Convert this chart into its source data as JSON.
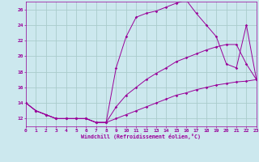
{
  "xlabel": "Windchill (Refroidissement éolien,°C)",
  "bg_color": "#cce8ee",
  "grid_color": "#aacccc",
  "line_color": "#990099",
  "x_min": 0,
  "x_max": 23,
  "y_min": 11,
  "y_max": 27,
  "curve1_x": [
    0,
    1,
    2,
    3,
    4,
    5,
    6,
    7,
    8,
    9,
    10,
    11,
    12,
    13,
    14,
    15,
    16,
    17,
    18,
    19,
    20,
    21,
    22,
    23
  ],
  "curve1_y": [
    14.0,
    13.0,
    12.5,
    12.0,
    12.0,
    12.0,
    12.0,
    11.5,
    11.5,
    12.0,
    12.5,
    13.0,
    13.5,
    14.0,
    14.5,
    15.0,
    15.3,
    15.7,
    16.0,
    16.3,
    16.5,
    16.7,
    16.8,
    17.0
  ],
  "curve2_x": [
    0,
    1,
    2,
    3,
    4,
    5,
    6,
    7,
    8,
    9,
    10,
    11,
    12,
    13,
    14,
    15,
    16,
    17,
    18,
    19,
    20,
    21,
    22,
    23
  ],
  "curve2_y": [
    14.0,
    13.0,
    12.5,
    12.0,
    12.0,
    12.0,
    12.0,
    11.5,
    11.5,
    13.5,
    15.0,
    16.0,
    17.0,
    17.8,
    18.5,
    19.3,
    19.8,
    20.3,
    20.8,
    21.2,
    21.5,
    21.5,
    19.0,
    17.0
  ],
  "curve3_x": [
    0,
    1,
    2,
    3,
    4,
    5,
    6,
    7,
    8,
    9,
    10,
    11,
    12,
    13,
    14,
    15,
    16,
    17,
    18,
    19,
    20,
    21,
    22,
    23
  ],
  "curve3_y": [
    14.0,
    13.0,
    12.5,
    12.0,
    12.0,
    12.0,
    12.0,
    11.5,
    11.5,
    18.5,
    22.5,
    25.0,
    25.5,
    25.8,
    26.3,
    26.8,
    27.2,
    25.5,
    24.0,
    22.5,
    19.0,
    18.5,
    24.0,
    17.0
  ]
}
